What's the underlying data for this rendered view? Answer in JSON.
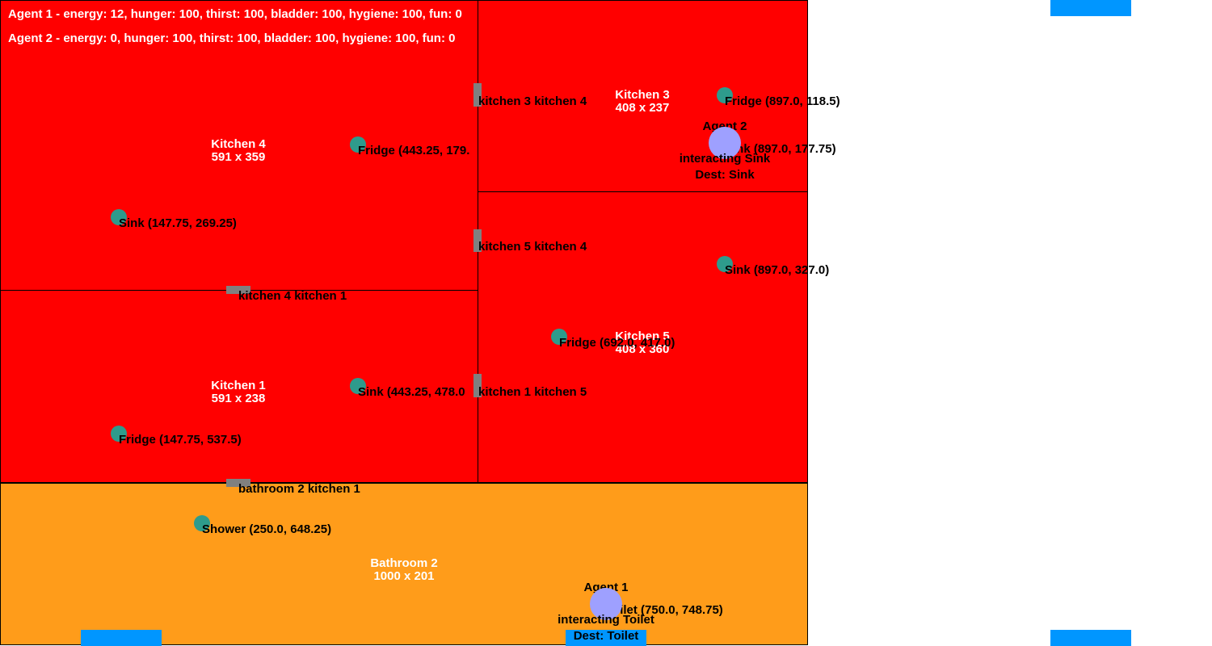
{
  "status": {
    "agent1": "Agent 1 - energy: 12, hunger: 100, thirst: 100, bladder: 100, hygiene: 100, fun: 0",
    "agent2": "Agent 2 - energy: 0, hunger: 100, thirst: 100, bladder: 100, hygiene: 100, fun: 0"
  },
  "rooms": {
    "kitchen4": {
      "name": "Kitchen 4",
      "size": "591 x 359"
    },
    "kitchen3": {
      "name": "Kitchen 3",
      "size": "408 x 237"
    },
    "kitchen5": {
      "name": "Kitchen 5",
      "size": "408 x 360"
    },
    "kitchen1": {
      "name": "Kitchen 1",
      "size": "591 x 238"
    },
    "bathroom2": {
      "name": "Bathroom 2",
      "size": "1000 x 201"
    }
  },
  "doors": {
    "k3k4": "kitchen 3 kitchen 4",
    "k5k4": "kitchen 5 kitchen 4",
    "k4k1": "kitchen 4 kitchen 1",
    "k1k5": "kitchen 1 kitchen 5",
    "b2k1": "bathroom 2 kitchen 1"
  },
  "objects": {
    "fridge_k3": "Fridge (897.0, 118.5)",
    "sink_k3": "Sink (897.0, 177.75)",
    "fridge_k4": "Fridge (443.25, 179.",
    "sink_k4": "Sink (147.75, 269.25)",
    "sink_k5": "Sink (897.0, 327.0)",
    "fridge_k5": "Fridge (692.0, 417.0)",
    "sink_k1": "Sink (443.25, 478.0",
    "fridge_k1": "Fridge (147.75, 537.5)",
    "shower_b2": "Shower (250.0, 648.25)",
    "toilet_b2": "Toilet (750.0, 748.75)"
  },
  "agents": {
    "agent2": {
      "name": "Agent 2",
      "action": "interacting Sink",
      "dest": "Dest: Sink"
    },
    "agent1": {
      "name": "Agent 1",
      "action": "interacting Toilet",
      "dest": "Dest: Toilet"
    }
  },
  "colors": {
    "kitchen": "#ff0000",
    "bathroom": "#ff9c1a",
    "object": "#2e9b8c",
    "agent": "#9ea0ff",
    "door": "#808080",
    "window_tab": "#0096ff"
  }
}
